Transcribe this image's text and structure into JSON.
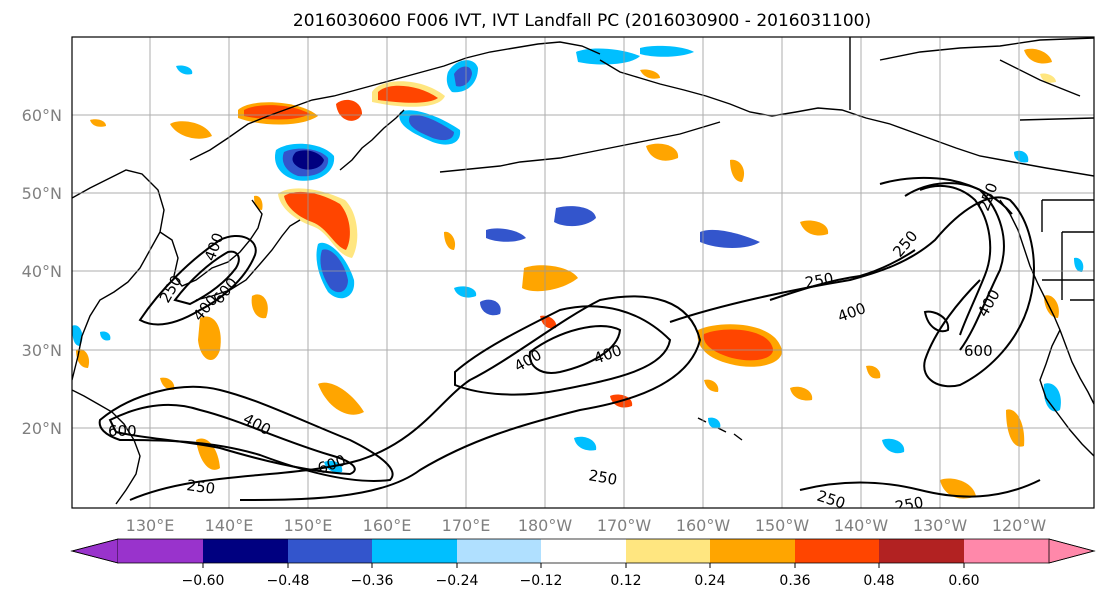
{
  "title": "2016030600 F006 IVT, IVT Landfall PC (2016030900 - 2016031100)",
  "map": {
    "lat_labels": [
      "60°N",
      "50°N",
      "40°N",
      "30°N",
      "20°N"
    ],
    "lon_labels": [
      "130°E",
      "140°E",
      "150°E",
      "160°E",
      "170°E",
      "180°W",
      "170°W",
      "160°W",
      "150°W",
      "140°W",
      "130°W",
      "120°W"
    ],
    "contour_labels": [
      "250",
      "400",
      "600",
      "250",
      "400",
      "600",
      "400",
      "400",
      "250",
      "250",
      "400",
      "250",
      "250",
      "250",
      "600",
      "400",
      "250",
      "400",
      "600"
    ]
  },
  "colorbar": {
    "colors": [
      "#9933cc",
      "#000080",
      "#3355cc",
      "#00bfff",
      "#b0e0ff",
      "#ffffff",
      "#ffe680",
      "#ffa500",
      "#ff4500",
      "#b22222",
      "#ff88aa"
    ],
    "ticks": [
      "−0.60",
      "−0.48",
      "−0.36",
      "−0.24",
      "−0.12",
      "0.12",
      "0.24",
      "0.36",
      "0.48",
      "0.60"
    ]
  }
}
